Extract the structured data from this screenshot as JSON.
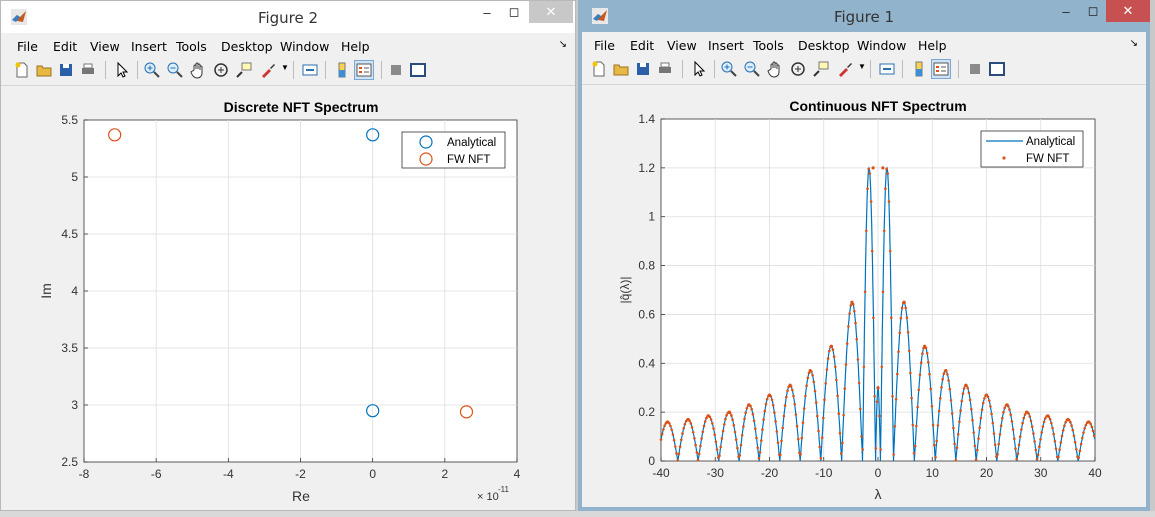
{
  "windows": [
    {
      "id": "win2",
      "title": "Figure 2",
      "menu": [
        "File",
        "Edit",
        "View",
        "Insert",
        "Tools",
        "Desktop",
        "Window",
        "Help"
      ],
      "chart": {
        "title": "Discrete NFT Spectrum",
        "xlabel": "Re",
        "ylabel": "Im",
        "xticks": [
          "-8",
          "-6",
          "-4",
          "-2",
          "0",
          "2",
          "4"
        ],
        "yticks": [
          "2.5",
          "3",
          "3.5",
          "4",
          "4.5",
          "5",
          "5.5"
        ],
        "exponent_base": "× 10",
        "exponent_power": "-11",
        "legend": [
          "Analytical",
          "FW NFT"
        ]
      }
    },
    {
      "id": "win1",
      "title": "Figure 1",
      "menu": [
        "File",
        "Edit",
        "View",
        "Insert",
        "Tools",
        "Desktop",
        "Window",
        "Help"
      ],
      "chart": {
        "title": "Continuous NFT Spectrum",
        "xlabel": "λ",
        "ylabel": "|q̂(λ)|",
        "xticks": [
          "-40",
          "-30",
          "-20",
          "-10",
          "0",
          "10",
          "20",
          "30",
          "40"
        ],
        "yticks": [
          "0",
          "0.2",
          "0.4",
          "0.6",
          "0.8",
          "1",
          "1.2",
          "1.4"
        ],
        "legend": [
          "Analytical",
          "FW NFT"
        ]
      }
    }
  ],
  "colors": {
    "series1": "#0072bd",
    "series2": "#d95319",
    "grid": "#dedede",
    "matlab_title_active": "#92b3cc"
  },
  "chart_data": [
    {
      "type": "scatter",
      "title": "Discrete NFT Spectrum",
      "xlabel": "Re",
      "ylabel": "Im",
      "xlim": [
        -8e-11,
        4e-11
      ],
      "ylim": [
        2.5,
        5.5
      ],
      "x_scale_factor": "1e-11",
      "grid": true,
      "legend_position": "top-right",
      "series": [
        {
          "name": "Analytical",
          "color": "#0072bd",
          "marker": "circle",
          "points": [
            [
              0,
              5.37
            ],
            [
              0,
              2.95
            ]
          ]
        },
        {
          "name": "FW NFT",
          "color": "#d95319",
          "marker": "circle",
          "points": [
            [
              -7.15e-11,
              5.37
            ],
            [
              2.6e-11,
              2.94
            ]
          ]
        }
      ]
    },
    {
      "type": "line",
      "title": "Continuous NFT Spectrum",
      "xlabel": "λ",
      "ylabel": "|q̂(λ)|",
      "xlim": [
        -40,
        40
      ],
      "ylim": [
        0,
        1.4
      ],
      "grid": true,
      "legend_position": "top-right",
      "series": [
        {
          "name": "Analytical",
          "color": "#0072bd",
          "style": "line"
        },
        {
          "name": "FW NFT",
          "color": "#d95319",
          "style": "dots"
        }
      ],
      "lobes": [
        {
          "center": -38.8,
          "peak": 0.16
        },
        {
          "center": -35.0,
          "peak": 0.17
        },
        {
          "center": -31.3,
          "peak": 0.185
        },
        {
          "center": -27.4,
          "peak": 0.2
        },
        {
          "center": -23.8,
          "peak": 0.23
        },
        {
          "center": -20.0,
          "peak": 0.27
        },
        {
          "center": -16.2,
          "peak": 0.31
        },
        {
          "center": -12.5,
          "peak": 0.37
        },
        {
          "center": -8.6,
          "peak": 0.47
        },
        {
          "center": -4.8,
          "peak": 0.65
        },
        {
          "center": -0.9,
          "peak": 1.2
        },
        {
          "center": 0.0,
          "peak": 0.3
        },
        {
          "center": 0.9,
          "peak": 1.2
        },
        {
          "center": 4.8,
          "peak": 0.65
        },
        {
          "center": 8.6,
          "peak": 0.47
        },
        {
          "center": 12.5,
          "peak": 0.37
        },
        {
          "center": 16.2,
          "peak": 0.31
        },
        {
          "center": 20.0,
          "peak": 0.27
        },
        {
          "center": 23.8,
          "peak": 0.23
        },
        {
          "center": 27.4,
          "peak": 0.2
        },
        {
          "center": 31.3,
          "peak": 0.185
        },
        {
          "center": 35.0,
          "peak": 0.17
        },
        {
          "center": 38.8,
          "peak": 0.16
        }
      ],
      "peaks": [
        {
          "x": -38.8,
          "y": 0.16
        },
        {
          "x": -35.0,
          "y": 0.17
        },
        {
          "x": -31.3,
          "y": 0.185
        },
        {
          "x": -27.4,
          "y": 0.2
        },
        {
          "x": -23.8,
          "y": 0.23
        },
        {
          "x": -20.0,
          "y": 0.27
        },
        {
          "x": -16.2,
          "y": 0.31
        },
        {
          "x": -12.5,
          "y": 0.37
        },
        {
          "x": -8.6,
          "y": 0.47
        },
        {
          "x": -4.8,
          "y": 0.65
        },
        {
          "x": -0.9,
          "y": 1.2
        },
        {
          "x": 0.0,
          "y": 0.3
        },
        {
          "x": 0.9,
          "y": 1.2
        },
        {
          "x": 4.8,
          "y": 0.65
        },
        {
          "x": 8.6,
          "y": 0.47
        },
        {
          "x": 12.5,
          "y": 0.37
        },
        {
          "x": 16.2,
          "y": 0.31
        },
        {
          "x": 20.0,
          "y": 0.27
        },
        {
          "x": 23.8,
          "y": 0.23
        },
        {
          "x": 27.4,
          "y": 0.2
        },
        {
          "x": 31.3,
          "y": 0.185
        },
        {
          "x": 35.0,
          "y": 0.17
        },
        {
          "x": 38.8,
          "y": 0.16
        }
      ]
    }
  ]
}
